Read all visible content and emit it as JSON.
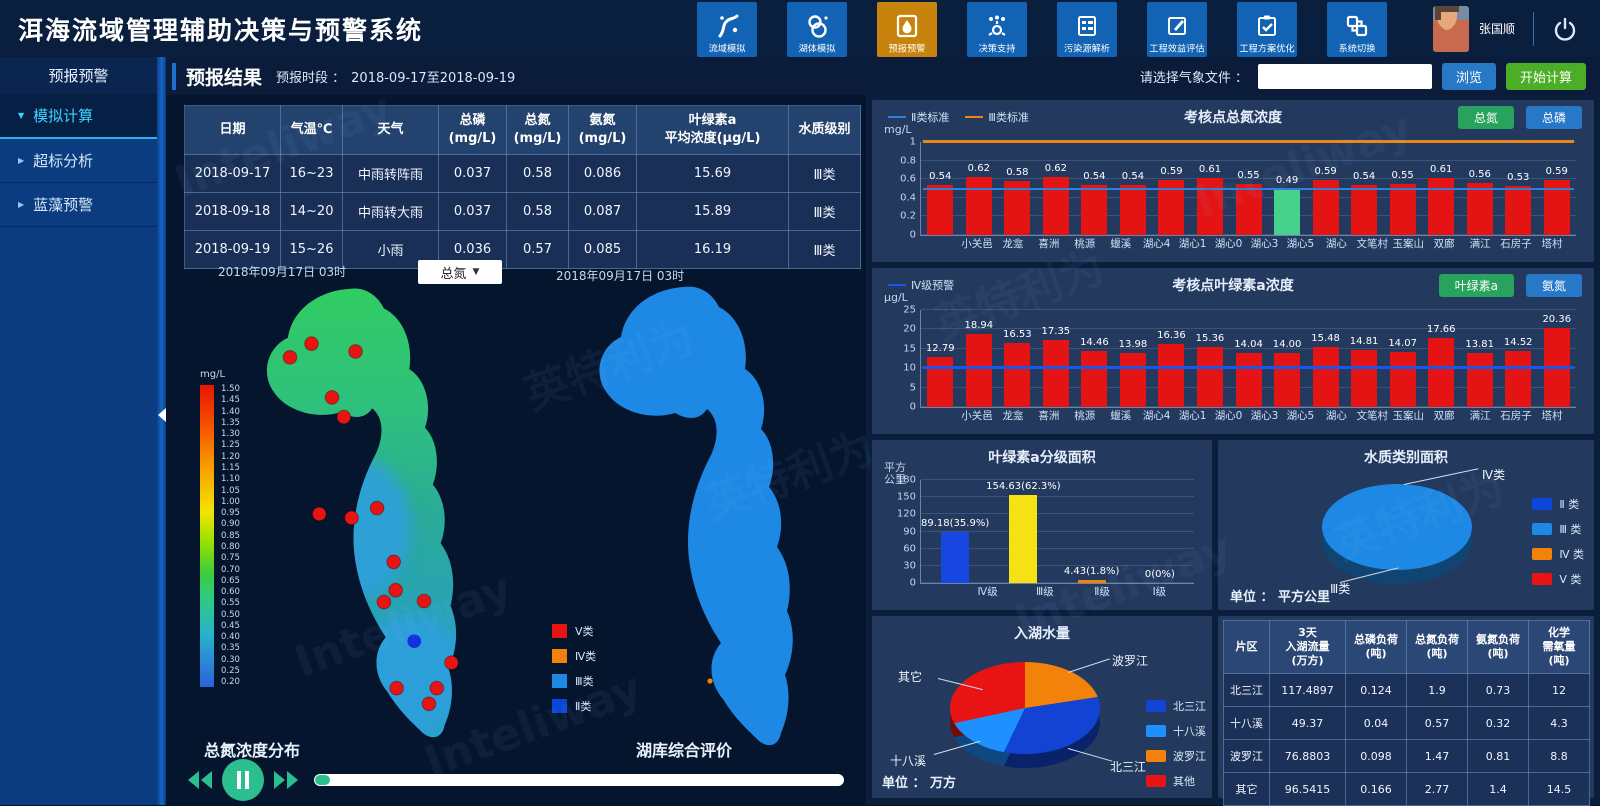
{
  "app": {
    "title": "洱海流域管理辅助决策与预警系统",
    "user": "张国顺"
  },
  "nav": {
    "items": [
      {
        "label": "流域模拟",
        "icon": "river",
        "active": false
      },
      {
        "label": "湖体模拟",
        "icon": "lake",
        "active": false
      },
      {
        "label": "预报预警",
        "icon": "droplet",
        "active": true
      },
      {
        "label": "决策支持",
        "icon": "gear",
        "active": false
      },
      {
        "label": "污染源解析",
        "icon": "grid",
        "active": false
      },
      {
        "label": "工程效益评估",
        "icon": "edit",
        "active": false
      },
      {
        "label": "工程方案优化",
        "icon": "check",
        "active": false
      },
      {
        "label": "系统切换",
        "icon": "switch",
        "active": false
      }
    ]
  },
  "sidebar": {
    "title": "预报预警",
    "items": [
      {
        "label": "模拟计算",
        "active": true
      },
      {
        "label": "超标分析",
        "active": false
      },
      {
        "label": "蓝藻预警",
        "active": false
      }
    ]
  },
  "toolbar": {
    "page_title": "预报结果",
    "period_label": "预报时段 ：",
    "period_value": "2018-09-17至2018-09-19",
    "file_label": "请选择气象文件 ：",
    "file_value": "",
    "browse_label": "浏览",
    "start_label": "开始计算"
  },
  "forecast_table": {
    "headers": [
      [
        "日期"
      ],
      [
        "气温℃"
      ],
      [
        "天气"
      ],
      [
        "总磷",
        "(mg/L)"
      ],
      [
        "总氮",
        "(mg/L)"
      ],
      [
        "氨氮",
        "(mg/L)"
      ],
      [
        "叶绿素a",
        "平均浓度(μg/L)"
      ],
      [
        "水质级别"
      ]
    ],
    "rows": [
      [
        "2018-09-17",
        "16~23",
        "中雨转阵雨",
        "0.037",
        "0.58",
        "0.086",
        "15.69",
        "Ⅲ类"
      ],
      [
        "2018-09-18",
        "14~20",
        "中雨转大雨",
        "0.037",
        "0.58",
        "0.087",
        "15.89",
        "Ⅲ类"
      ],
      [
        "2018-09-19",
        "15~26",
        "小雨",
        "0.036",
        "0.57",
        "0.085",
        "16.19",
        "Ⅲ类"
      ]
    ]
  },
  "maps": {
    "left_date": "2018年09月17日 03时",
    "right_date": "2018年09月17日 03时",
    "dropdown_value": "总氮",
    "dropdown_caret": "▼",
    "left_caption": "总氮浓度分布",
    "right_caption": "湖库综合评价",
    "scale_unit": "mg/L",
    "scale_ticks": [
      "1.50",
      "1.45",
      "1.40",
      "1.35",
      "1.30",
      "1.25",
      "1.20",
      "1.15",
      "1.10",
      "1.05",
      "1.00",
      "0.95",
      "0.90",
      "0.85",
      "0.80",
      "0.75",
      "0.70",
      "0.65",
      "0.60",
      "0.55",
      "0.50",
      "0.45",
      "0.40",
      "0.35",
      "0.30",
      "0.25",
      "0.20"
    ],
    "class_legend": [
      {
        "label": "Ⅴ类",
        "color": "#e81414"
      },
      {
        "label": "Ⅳ类",
        "color": "#f2820a"
      },
      {
        "label": "Ⅲ类",
        "color": "#1e88e5"
      },
      {
        "label": "Ⅱ类",
        "color": "#0a46d8"
      }
    ],
    "left_map": {
      "dots": [
        [
          56,
          64
        ],
        [
          101,
          72
        ],
        [
          34,
          78
        ],
        [
          77,
          119
        ],
        [
          89,
          139
        ],
        [
          64,
          238
        ],
        [
          97,
          242
        ],
        [
          123,
          232
        ],
        [
          140,
          287
        ],
        [
          142,
          316
        ],
        [
          130,
          328
        ],
        [
          171,
          327
        ],
        [
          199,
          390
        ],
        [
          143,
          416
        ],
        [
          184,
          416
        ],
        [
          176,
          432
        ]
      ],
      "blue_dot": [
        161,
        368
      ],
      "dot_color": "#e81414",
      "blue_dot_color": "#1230e0"
    }
  },
  "chart_data": [
    {
      "type": "bar",
      "title": "考核点总氮浓度",
      "unit": "mg/L",
      "ylim": [
        0,
        1
      ],
      "yticks": [
        0,
        0.2,
        0.4,
        0.6,
        0.8,
        1
      ],
      "categories": [
        "小关邑",
        "龙龛",
        "喜洲",
        "桃源",
        "蝘溪",
        "湖心4",
        "湖心1",
        "湖心0",
        "湖心3",
        "湖心5",
        "湖心",
        "文笔村",
        "玉案山",
        "双廊",
        "满江",
        "石房子",
        "塔村"
      ],
      "values": [
        0.54,
        0.62,
        0.58,
        0.62,
        0.54,
        0.54,
        0.59,
        0.61,
        0.55,
        0.49,
        0.59,
        0.54,
        0.55,
        0.61,
        0.56,
        0.53,
        0.59
      ],
      "bar_color": "#e41414",
      "highlight": {
        "index": 9,
        "color": "#45d08b"
      },
      "thresholds": [
        {
          "label": "Ⅱ类标准",
          "value": 0.5,
          "color": "#2f7ed8",
          "lw": 2
        },
        {
          "label": "Ⅲ类标准",
          "value": 1.0,
          "color": "#e8871a",
          "lw": 3
        }
      ],
      "buttons": [
        {
          "label": "总氮",
          "color": "#27a35d"
        },
        {
          "label": "总磷",
          "color": "#2878c8"
        }
      ]
    },
    {
      "type": "bar",
      "title": "考核点叶绿素a浓度",
      "unit": "μg/L",
      "ylim": [
        0,
        25
      ],
      "yticks": [
        0,
        5,
        10,
        15,
        20,
        25
      ],
      "categories": [
        "小关邑",
        "龙龛",
        "喜洲",
        "桃源",
        "蝘溪",
        "湖心4",
        "湖心1",
        "湖心0",
        "湖心3",
        "湖心5",
        "湖心",
        "文笔村",
        "玉案山",
        "双廊",
        "满江",
        "石房子",
        "塔村"
      ],
      "values": [
        12.79,
        18.94,
        16.53,
        17.35,
        14.46,
        13.98,
        16.36,
        15.36,
        14.04,
        14.0,
        15.48,
        14.81,
        14.07,
        17.66,
        13.81,
        14.52,
        20.36
      ],
      "bar_color": "#e41414",
      "thresholds": [
        {
          "label": "Ⅳ级预警",
          "value": 10,
          "color": "#1a56e8",
          "lw": 3
        }
      ],
      "buttons": [
        {
          "label": "叶绿素a",
          "color": "#27a35d"
        },
        {
          "label": "氨氮",
          "color": "#2878c8"
        }
      ]
    },
    {
      "type": "bar",
      "title": "叶绿素a分级面积",
      "unit_lines": "平方\n公里",
      "ylim": [
        0,
        180
      ],
      "yticks": [
        0,
        30,
        60,
        90,
        120,
        150,
        180
      ],
      "categories": [
        "Ⅳ级",
        "Ⅲ级",
        "Ⅱ级",
        "Ⅰ级"
      ],
      "values": [
        89.18,
        154.63,
        4.43,
        0
      ],
      "value_labels": [
        "89.18(35.9%)",
        "154.63(62.3%)",
        "4.43(1.8%)",
        "0(0%)"
      ],
      "bar_colors": [
        "#1747e0",
        "#f4e116",
        "#f2820a",
        "transparent"
      ]
    },
    {
      "type": "pie",
      "title": "水质类别面积",
      "unit_label": "单位 ： 平方公里",
      "slices": [
        {
          "label": "Ⅳ类",
          "value": 2.5,
          "color": "#f2820a"
        },
        {
          "label": "Ⅲ类",
          "value": 245.7,
          "color": "#1e88e5"
        }
      ],
      "callouts": {
        "top": "Ⅳ类",
        "bottom": "Ⅲ类"
      },
      "legend": [
        {
          "label": "Ⅱ 类",
          "color": "#0a46d8"
        },
        {
          "label": "Ⅲ 类",
          "color": "#1e88e5"
        },
        {
          "label": "Ⅳ 类",
          "color": "#f2820a"
        },
        {
          "label": "Ⅴ 类",
          "color": "#e81414"
        }
      ]
    },
    {
      "type": "pie",
      "title": "入湖水量",
      "unit_label": "单位 ： 万方",
      "slices": [
        {
          "label": "波罗江",
          "value": 76.8803,
          "color": "#f2820a"
        },
        {
          "label": "北三江",
          "value": 117.4897,
          "color": "#1243d2"
        },
        {
          "label": "十八溪",
          "value": 49.37,
          "color": "#1e90ff"
        },
        {
          "label": "其它",
          "value": 96.5415,
          "color": "#e81414"
        }
      ],
      "callouts": {
        "top_right": "波罗江",
        "bottom_right": "北三江",
        "bottom_left": "十八溪",
        "top_left": "其它"
      },
      "legend": [
        {
          "label": "北三江",
          "color": "#1243d2"
        },
        {
          "label": "十八溪",
          "color": "#1e90ff"
        },
        {
          "label": "波罗江",
          "color": "#f2820a"
        },
        {
          "label": "其他",
          "color": "#e81414"
        }
      ]
    }
  ],
  "load_table": {
    "headers": [
      [
        "片区"
      ],
      [
        "3天",
        "入湖流量",
        "(万方)"
      ],
      [
        "总磷负荷",
        "(吨)"
      ],
      [
        "总氮负荷",
        "(吨)"
      ],
      [
        "氨氮负荷",
        "(吨)"
      ],
      [
        "化学",
        "需氧量",
        "(吨)"
      ]
    ],
    "rows": [
      [
        "北三江",
        "117.4897",
        "0.124",
        "1.9",
        "0.73",
        "12"
      ],
      [
        "十八溪",
        "49.37",
        "0.04",
        "0.57",
        "0.32",
        "4.3"
      ],
      [
        "波罗江",
        "76.8803",
        "0.098",
        "1.47",
        "0.81",
        "8.8"
      ],
      [
        "其它",
        "96.5415",
        "0.166",
        "2.77",
        "1.4",
        "14.5"
      ]
    ]
  },
  "watermark": {
    "texts": [
      "Inteliway",
      "英特利为"
    ]
  }
}
